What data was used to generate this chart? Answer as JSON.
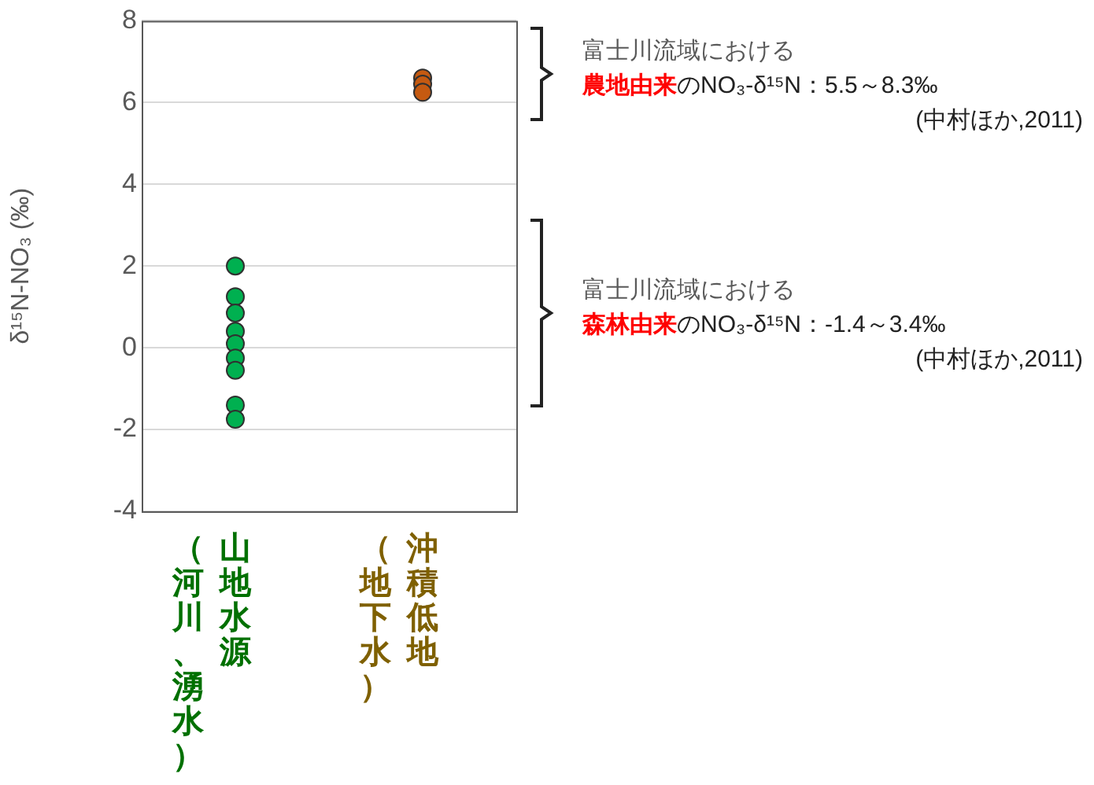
{
  "chart_data": {
    "type": "scatter",
    "ylabel": "δ¹⁵N-NO₃ (‰)",
    "categories": [
      "山地水源（河川、湧水）",
      "沖積低地（地下水）"
    ],
    "series": [
      {
        "color": "#00b050",
        "x": [
          "山地水源（河川、湧水）",
          "山地水源（河川、湧水）",
          "山地水源（河川、湧水）",
          "山地水源（河川、湧水）",
          "山地水源（河川、湧水）",
          "山地水源（河川、湧水）",
          "山地水源（河川、湧水）",
          "山地水源（河川、湧水）",
          "山地水源（河川、湧水）"
        ],
        "values": [
          2.0,
          1.25,
          0.85,
          0.4,
          0.1,
          -0.25,
          -0.55,
          -1.4,
          -1.75
        ]
      },
      {
        "color": "#c55a11",
        "x": [
          "沖積低地（地下水）",
          "沖積低地（地下水）",
          "沖積低地（地下水）"
        ],
        "values": [
          6.6,
          6.45,
          6.25
        ]
      }
    ],
    "ylim": [
      -4,
      8
    ],
    "yticks": [
      -4,
      -2,
      0,
      2,
      4,
      6,
      8
    ],
    "grid": "y",
    "legend": false,
    "marker": "circle",
    "annotations": [
      "富士川流域における",
      "農地由来",
      "のNO₃-δ¹⁵N：5.5～8.3‰",
      "(中村ほか,2011)",
      "富士川流域における",
      "森林由来",
      "のNO₃-δ¹⁵N：-1.4～3.4‰",
      "(中村ほか,2011)"
    ]
  }
}
